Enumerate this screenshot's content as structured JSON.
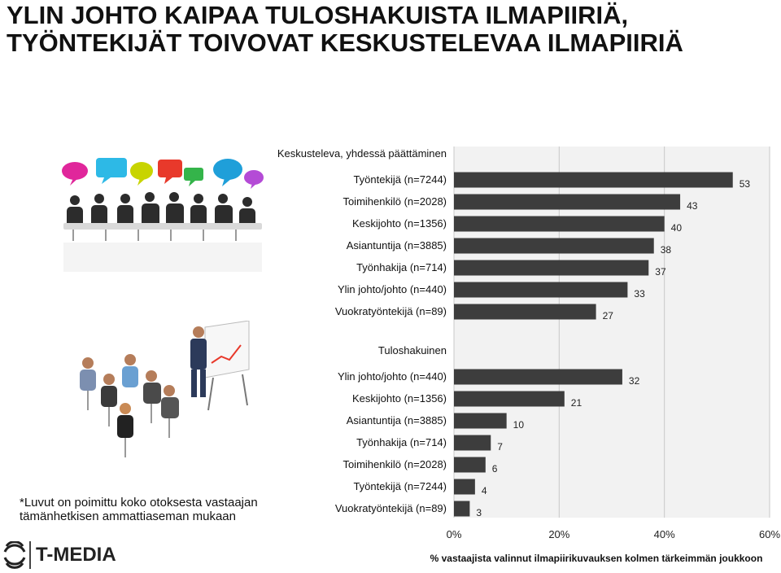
{
  "slide": {
    "title_line1": "YLIN JOHTO KAIPAA TULOSHAKUISTA ILMAPIIRIÄ,",
    "title_line2": "TYÖNTEKIJÄT TOIVOVAT KESKUSTELEVAA ILMAPIIRIÄ",
    "footnote_line1": "*Luvut on poimittu koko otoksesta vastaajan",
    "footnote_line2": "tämänhetkisen ammattiaseman mukaan",
    "logo_text": "T-MEDIA"
  },
  "colors": {
    "bar": "#3d3d3d",
    "plot_background": "#f2f2f2",
    "gridline": "#c8c8c8",
    "page_background": "#ffffff"
  },
  "icons": [
    "meeting-group-illustration",
    "presentation-audience-illustration",
    "t-media-logo-mark"
  ],
  "chart_data": {
    "type": "bar",
    "orientation": "horizontal",
    "xlabel": "% vastaajista valinnut  ilmapiirikuvauksen kolmen tärkeimmän joukkoon",
    "xlim": [
      0,
      60
    ],
    "xticks": [
      "0%",
      "20%",
      "40%",
      "60%"
    ],
    "grid": true,
    "groups": [
      {
        "title": "Keskusteleva, yhdessä päättäminen",
        "categories": [
          "Työntekijä (n=7244)",
          "Toimihenkilö (n=2028)",
          "Keskijohto (n=1356)",
          "Asiantuntija (n=3885)",
          "Työnhakija (n=714)",
          "Ylin johto/johto (n=440)",
          "Vuokratyöntekijä (n=89)"
        ],
        "values": [
          53,
          43,
          40,
          38,
          37,
          33,
          27
        ]
      },
      {
        "title": "Tuloshakuinen",
        "categories": [
          "Ylin johto/johto (n=440)",
          "Keskijohto (n=1356)",
          "Asiantuntija (n=3885)",
          "Työnhakija (n=714)",
          "Toimihenkilö (n=2028)",
          "Työntekijä (n=7244)",
          "Vuokratyöntekijä (n=89)"
        ],
        "values": [
          32,
          21,
          10,
          7,
          6,
          4,
          3
        ]
      }
    ]
  }
}
